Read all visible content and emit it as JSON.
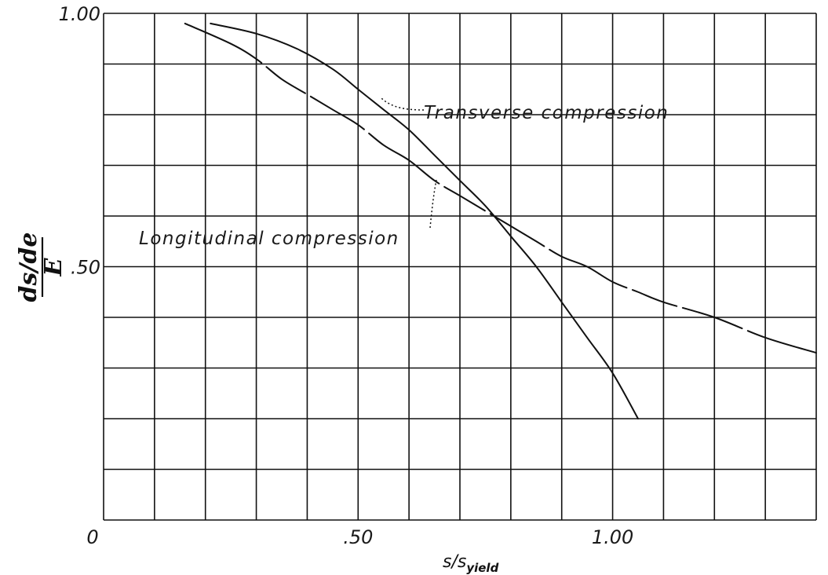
{
  "chart_data": {
    "type": "line",
    "xlabel": "s/s",
    "xlabel_sub": "yield",
    "ylabel_num": "ds/de",
    "ylabel_den": "E",
    "xlim": [
      0,
      1.4
    ],
    "ylim": [
      0,
      1.0
    ],
    "x_ticks": [
      {
        "value": 0,
        "label": "0"
      },
      {
        "value": 0.5,
        "label": ".50"
      },
      {
        "value": 1.0,
        "label": "1.00"
      }
    ],
    "y_ticks": [
      {
        "value": 0.5,
        "label": ".50"
      },
      {
        "value": 1.0,
        "label": "1.00"
      }
    ],
    "grid": true,
    "grid_step_x": 0.1,
    "grid_step_y": 0.1,
    "series": [
      {
        "name": "Transverse compression",
        "x": [
          0.21,
          0.3,
          0.38,
          0.45,
          0.5,
          0.55,
          0.6,
          0.65,
          0.7,
          0.75,
          0.8,
          0.85,
          0.9,
          0.95,
          1.0,
          1.05
        ],
        "y": [
          0.98,
          0.96,
          0.93,
          0.89,
          0.85,
          0.81,
          0.77,
          0.72,
          0.67,
          0.62,
          0.56,
          0.5,
          0.43,
          0.36,
          0.29,
          0.2
        ]
      },
      {
        "name": "Longitudinal compression",
        "x": [
          0.16,
          0.25,
          0.3,
          0.35,
          0.4,
          0.45,
          0.5,
          0.55,
          0.6,
          0.65,
          0.7,
          0.75,
          0.8,
          0.85,
          0.9,
          0.95,
          1.0,
          1.05,
          1.1,
          1.2,
          1.3,
          1.4
        ],
        "y": [
          0.98,
          0.94,
          0.91,
          0.87,
          0.84,
          0.81,
          0.78,
          0.74,
          0.71,
          0.67,
          0.64,
          0.61,
          0.58,
          0.55,
          0.52,
          0.5,
          0.47,
          0.45,
          0.43,
          0.4,
          0.36,
          0.33
        ]
      }
    ],
    "annotations": [
      {
        "text": "Transverse compression",
        "series": 0
      },
      {
        "text": "Longitudinal compression",
        "series": 1
      }
    ]
  }
}
